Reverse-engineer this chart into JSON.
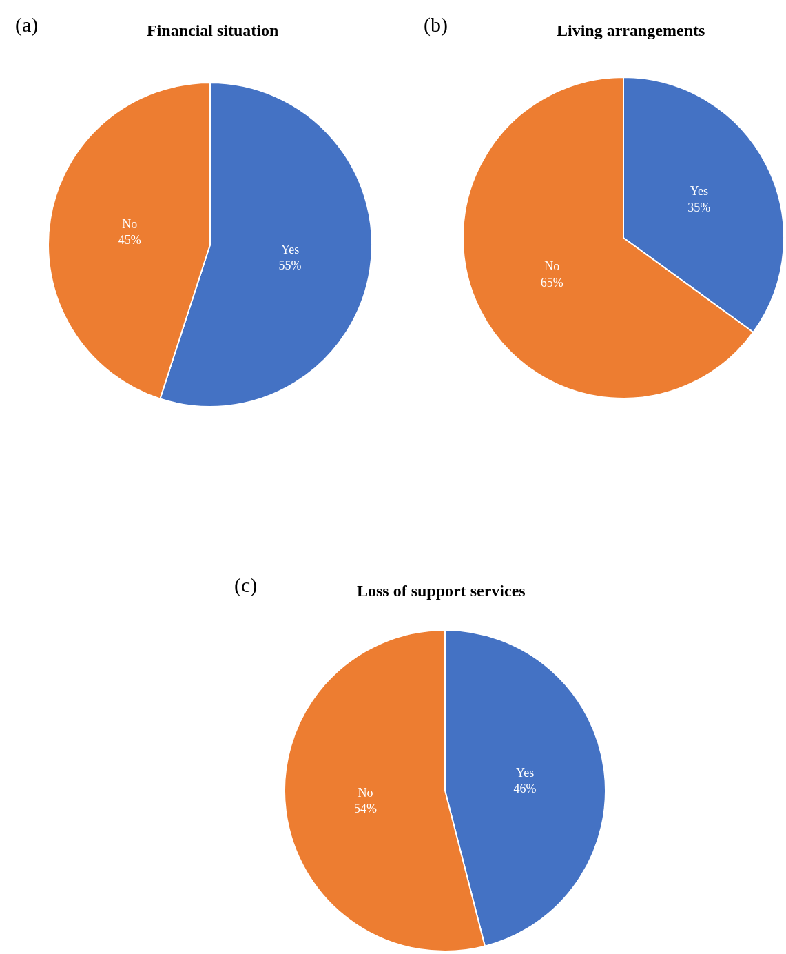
{
  "chart_data": [
    {
      "type": "pie",
      "title": "Financial situation",
      "annotations": [
        "(a)"
      ],
      "categories": [
        "Yes",
        "No"
      ],
      "values": [
        55,
        45
      ],
      "value_labels": [
        "55%",
        "45%"
      ],
      "colors": [
        "#4472c4",
        "#ed7d31"
      ],
      "legend": false
    },
    {
      "type": "pie",
      "title": "Living arrangements",
      "annotations": [
        "(b)"
      ],
      "categories": [
        "Yes",
        "No"
      ],
      "values": [
        35,
        65
      ],
      "value_labels": [
        "35%",
        "65%"
      ],
      "colors": [
        "#4472c4",
        "#ed7d31"
      ],
      "legend": false
    },
    {
      "type": "pie",
      "title": "Loss of support services",
      "annotations": [
        "(c)"
      ],
      "categories": [
        "Yes",
        "No"
      ],
      "values": [
        46,
        54
      ],
      "value_labels": [
        "46%",
        "54%"
      ],
      "colors": [
        "#4472c4",
        "#ed7d31"
      ],
      "legend": false
    }
  ]
}
